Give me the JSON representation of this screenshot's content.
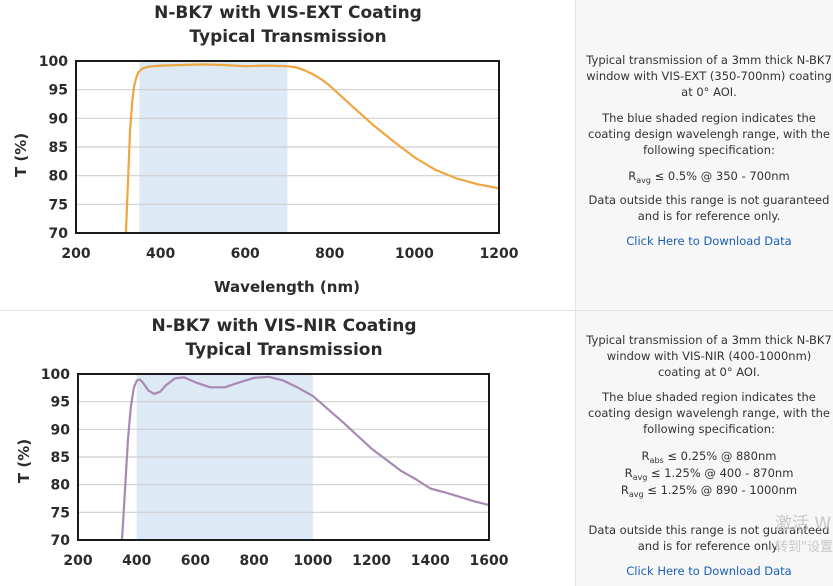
{
  "panels": [
    {
      "info": {
        "description": "Typical transmission of a 3mm thick N-BK7 window with VIS-EXT (350-700nm) coating at 0° AOI.",
        "shading_note": "The blue shaded region indicates the coating design wavelengh range, with the following specification:",
        "specs": [
          {
            "symbol": "R",
            "sub": "avg",
            "text": " ≤ 0.5% @ 350 - 700nm"
          }
        ],
        "disclaimer": "Data outside this range is not guaranteed and is for reference only.",
        "link": "Click Here to Download Data"
      }
    },
    {
      "info": {
        "description": "Typical transmission of a 3mm thick N-BK7 window with VIS-NIR (400-1000nm) coating at 0° AOI.",
        "shading_note": "The blue shaded region indicates the coating design wavelengh range, with the following specification:",
        "specs": [
          {
            "symbol": "R",
            "sub": "abs",
            "text": " ≤ 0.25% @ 880nm"
          },
          {
            "symbol": "R",
            "sub": "avg",
            "text": " ≤ 1.25% @ 400 - 870nm"
          },
          {
            "symbol": "R",
            "sub": "avg",
            "text": " ≤ 1.25% @ 890 - 1000nm"
          }
        ],
        "disclaimer": "Data outside this range is not guaranteed and is for reference only.",
        "link": "Click Here to Download Data"
      }
    }
  ],
  "chart_data": [
    {
      "type": "line",
      "title": "N-BK7 with VIS-EXT Coating",
      "subtitle": "Typical Transmission",
      "xlabel": "Wavelength (nm)",
      "ylabel": "T (%)",
      "xlim": [
        200,
        1200
      ],
      "ylim": [
        70,
        100
      ],
      "xticks": [
        200,
        400,
        600,
        800,
        1000,
        1200
      ],
      "yticks": [
        70,
        75,
        80,
        85,
        90,
        95,
        100
      ],
      "grid": "horizontal",
      "shaded_region": [
        350,
        700
      ],
      "shade_color": "#dde9f5",
      "series": [
        {
          "color": "#f0a640",
          "x": [
            318,
            323,
            328,
            333,
            337,
            342,
            347,
            355,
            370,
            400,
            450,
            500,
            550,
            600,
            650,
            700,
            720,
            740,
            760,
            780,
            800,
            850,
            900,
            950,
            1000,
            1050,
            1100,
            1150,
            1200
          ],
          "y": [
            70,
            79,
            88,
            93,
            95.5,
            97,
            98,
            98.6,
            99,
            99.2,
            99.3,
            99.4,
            99.3,
            99.1,
            99.2,
            99.1,
            98.9,
            98.4,
            97.7,
            96.8,
            95.7,
            92.3,
            89,
            86,
            83.2,
            81,
            79.5,
            78.5,
            77.8
          ]
        }
      ]
    },
    {
      "type": "line",
      "title": "N-BK7 with VIS-NIR Coating",
      "subtitle": "Typical Transmission",
      "xlabel": "Wavelength (nm)",
      "ylabel": "T (%)",
      "xlim": [
        200,
        1600
      ],
      "ylim": [
        70,
        100
      ],
      "xticks": [
        200,
        400,
        600,
        800,
        1000,
        1200,
        1400,
        1600
      ],
      "yticks": [
        70,
        75,
        80,
        85,
        90,
        95,
        100
      ],
      "grid": "horizontal",
      "shaded_region": [
        400,
        1000
      ],
      "shade_color": "#dde9f5",
      "series": [
        {
          "color": "#a889b4",
          "x": [
            350,
            360,
            370,
            380,
            390,
            400,
            410,
            420,
            440,
            460,
            480,
            500,
            530,
            560,
            600,
            650,
            700,
            750,
            800,
            850,
            900,
            950,
            1000,
            1100,
            1200,
            1300,
            1350,
            1400,
            1450,
            1500,
            1550,
            1600
          ],
          "y": [
            70,
            79,
            88,
            94,
            97.5,
            98.8,
            99,
            98.5,
            97,
            96.4,
            96.8,
            98,
            99.2,
            99.4,
            98.5,
            97.6,
            97.6,
            98.5,
            99.3,
            99.5,
            98.8,
            97.5,
            96,
            91.4,
            86.5,
            82.5,
            81,
            79.3,
            78.6,
            77.8,
            77,
            76.3
          ]
        }
      ]
    }
  ],
  "watermark": {
    "line1": "激活 W",
    "line2": "转到\"设置"
  }
}
